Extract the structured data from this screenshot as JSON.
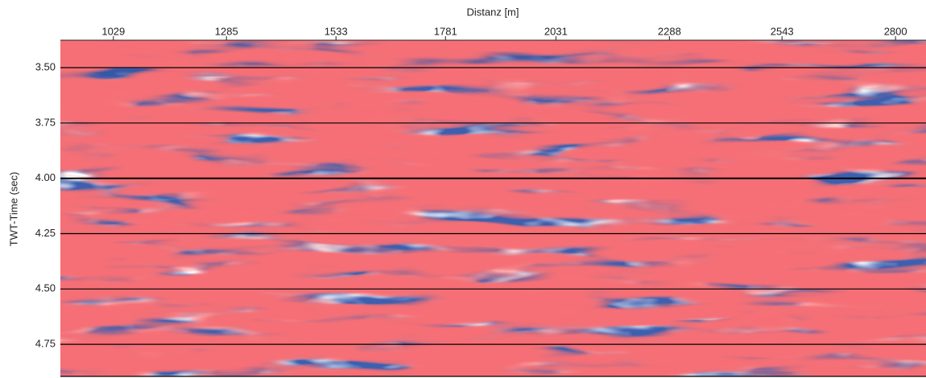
{
  "chart_data": {
    "type": "heatmap-image",
    "x_label": "Distanz [m]",
    "y_label": "TWT-Time (sec)",
    "xlim": [
      909,
      2869
    ],
    "xticks": [
      1029,
      1285,
      1533,
      1781,
      2031,
      2288,
      2543,
      2800
    ],
    "ylim": [
      3.376,
      4.895
    ],
    "yticks": [
      {
        "value": 3.5,
        "label": "3.50"
      },
      {
        "value": 3.75,
        "label": "3.75"
      },
      {
        "value": 4.0,
        "label": "4.00"
      },
      {
        "value": 4.25,
        "label": "4.25"
      },
      {
        "value": 4.5,
        "label": "4.50"
      },
      {
        "value": 4.75,
        "label": "4.75"
      }
    ],
    "grid": true
  }
}
